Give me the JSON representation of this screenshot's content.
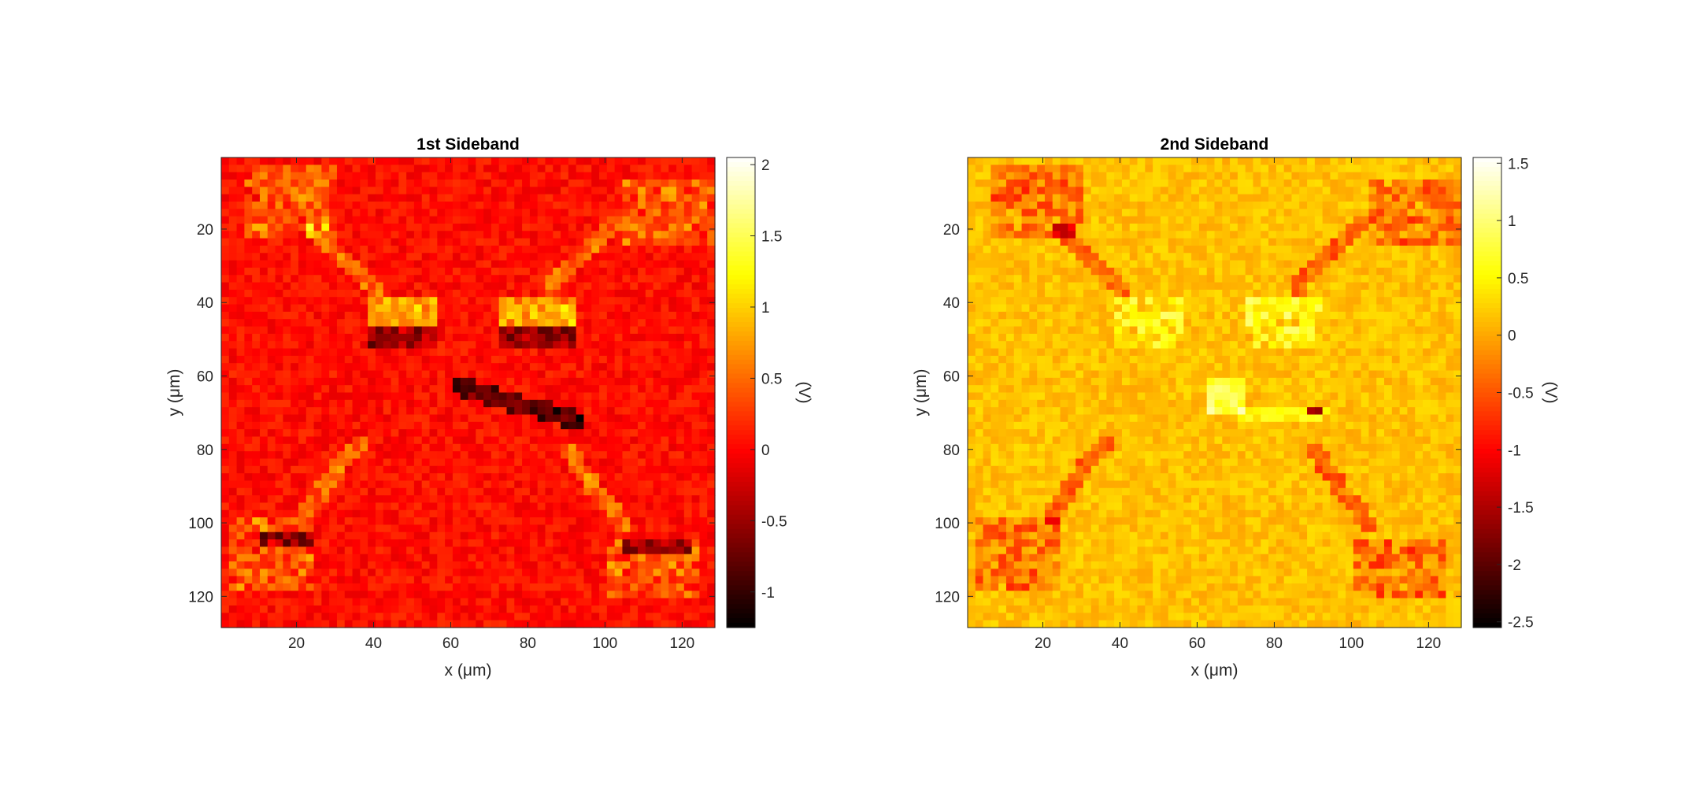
{
  "chart_data": [
    {
      "type": "heatmap",
      "title": "1st Sideband",
      "xlabel": "x (μm)",
      "ylabel": "y (μm)",
      "xlim": [
        0.5,
        128.5
      ],
      "ylim": [
        0.5,
        128.5
      ],
      "y_reversed": true,
      "x_ticks": [
        20,
        40,
        60,
        80,
        100,
        120
      ],
      "y_ticks": [
        20,
        40,
        60,
        80,
        100,
        120
      ],
      "grid": false,
      "colormap": "hot",
      "colorbar": {
        "label": "(V)",
        "range": [
          -1.25,
          2.05
        ],
        "ticks": [
          -1,
          -0.5,
          0,
          0.5,
          1,
          1.5,
          2
        ],
        "tick_labels": [
          "-1",
          "-0.5",
          "0",
          "0.5",
          "1",
          "1.5",
          "2"
        ]
      },
      "background_value": 0.05
    },
    {
      "type": "heatmap",
      "title": "2nd Sideband",
      "xlabel": "x (μm)",
      "ylabel": "y (μm)",
      "xlim": [
        0.5,
        128.5
      ],
      "ylim": [
        0.5,
        128.5
      ],
      "y_reversed": true,
      "x_ticks": [
        20,
        40,
        60,
        80,
        100,
        120
      ],
      "y_ticks": [
        20,
        40,
        60,
        80,
        100,
        120
      ],
      "grid": false,
      "colormap": "hot",
      "colorbar": {
        "label": "(V)",
        "range": [
          -2.55,
          1.55
        ],
        "ticks": [
          -2.5,
          -2,
          -1.5,
          -1,
          -0.5,
          0,
          0.5,
          1,
          1.5
        ],
        "tick_labels": [
          "-2.5",
          "-2",
          "-1.5",
          "-1",
          "-0.5",
          "0",
          "0.5",
          "1",
          "1.5"
        ]
      },
      "background_value": 0.15
    }
  ]
}
